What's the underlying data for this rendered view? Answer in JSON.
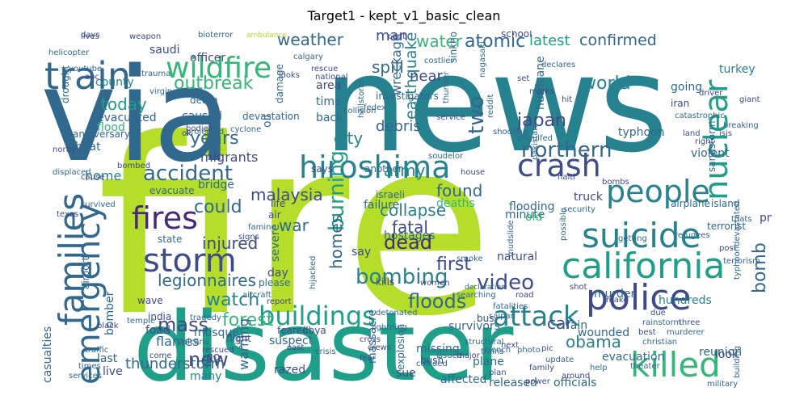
{
  "title": "Target1 - kept_v1_basic_clean",
  "palette": [
    "#440154",
    "#482878",
    "#3e4a89",
    "#31688e",
    "#26828e",
    "#1f9e89",
    "#35b779",
    "#6ece58",
    "#b5de2b",
    "#fde725"
  ],
  "words": [
    {
      "text": "fire",
      "color": "#b5de2b"
    },
    {
      "text": "news",
      "color": "#26828e"
    },
    {
      "text": "via",
      "color": "#31688e"
    },
    {
      "text": "disaster",
      "color": "#1f9e89"
    },
    {
      "text": "train",
      "color": "#31688e"
    },
    {
      "text": "wildfire",
      "color": "#35b779"
    },
    {
      "text": "families",
      "color": "#31688e"
    },
    {
      "text": "emergency",
      "color": "#31688e"
    },
    {
      "text": "hiroshima",
      "color": "#26828e"
    },
    {
      "text": "crash",
      "color": "#3e4a89"
    },
    {
      "text": "people",
      "color": "#26828e"
    },
    {
      "text": "suicide",
      "color": "#26828e"
    },
    {
      "text": "california",
      "color": "#1f9e89"
    },
    {
      "text": "police",
      "color": "#3e4a89"
    },
    {
      "text": "killed",
      "color": "#35b779"
    },
    {
      "text": "fires",
      "color": "#482878"
    },
    {
      "text": "storm",
      "color": "#3e4a89"
    },
    {
      "text": "nuclear",
      "color": "#1f9e89"
    },
    {
      "text": "accident",
      "color": "#31688e"
    },
    {
      "text": "bombing",
      "color": "#26828e"
    },
    {
      "text": "buildings",
      "color": "#1f9e89"
    },
    {
      "text": "attack",
      "color": "#26828e"
    },
    {
      "text": "video",
      "color": "#3e4a89"
    },
    {
      "text": "dead",
      "color": "#482878"
    },
    {
      "text": "weather",
      "color": "#31688e"
    },
    {
      "text": "man",
      "color": "#3e4a89"
    },
    {
      "text": "water",
      "color": "#35b779"
    },
    {
      "text": "atomic",
      "color": "#31688e"
    },
    {
      "text": "latest",
      "color": "#1f9e89"
    },
    {
      "text": "confirmed",
      "color": "#31688e"
    },
    {
      "text": "outbreak",
      "color": "#35b779"
    },
    {
      "text": "today",
      "color": "#1f9e89"
    },
    {
      "text": "years",
      "color": "#31688e"
    },
    {
      "text": "home",
      "color": "#26828e"
    },
    {
      "text": "northern",
      "color": "#31688e"
    },
    {
      "text": "japan",
      "color": "#3e4a89"
    },
    {
      "text": "world",
      "color": "#26828e"
    },
    {
      "text": "two",
      "color": "#31688e"
    },
    {
      "text": "spill",
      "color": "#31688e"
    },
    {
      "text": "earthquake",
      "color": "#26828e"
    },
    {
      "text": "debris",
      "color": "#31688e"
    },
    {
      "text": "collapse",
      "color": "#26828e"
    },
    {
      "text": "fatal",
      "color": "#3e4a89"
    },
    {
      "text": "found",
      "color": "#31688e"
    },
    {
      "text": "army",
      "color": "#26828e"
    },
    {
      "text": "malaysia",
      "color": "#3e4a89"
    },
    {
      "text": "war",
      "color": "#31688e"
    },
    {
      "text": "injured",
      "color": "#3e4a89"
    },
    {
      "text": "could",
      "color": "#31688e"
    },
    {
      "text": "legionnaires",
      "color": "#31688e"
    },
    {
      "text": "watch",
      "color": "#26828e"
    },
    {
      "text": "mass",
      "color": "#3e4a89"
    },
    {
      "text": "forest",
      "color": "#35b779"
    },
    {
      "text": "floods",
      "color": "#31688e"
    },
    {
      "text": "first",
      "color": "#3e4a89"
    },
    {
      "text": "burning",
      "color": "#1f9e89"
    },
    {
      "text": "homes",
      "color": "#31688e"
    },
    {
      "text": "bomb",
      "color": "#31688e"
    },
    {
      "text": "car",
      "color": "#3e4a89"
    },
    {
      "text": "obama",
      "color": "#26828e"
    },
    {
      "text": "wounded",
      "color": "#31688e"
    },
    {
      "text": "new",
      "color": "#3e4a89"
    },
    {
      "text": "thunderstorm",
      "color": "#31688e"
    },
    {
      "text": "released",
      "color": "#31688e"
    },
    {
      "text": "officials",
      "color": "#31688e"
    },
    {
      "text": "evacuation",
      "color": "#31688e"
    },
    {
      "text": "reunion",
      "color": "#31688e"
    },
    {
      "text": "mosque",
      "color": "#31688e"
    },
    {
      "text": "warning",
      "color": "#31688e"
    },
    {
      "text": "flames",
      "color": "#31688e"
    },
    {
      "text": "bomber",
      "color": "#31688e"
    },
    {
      "text": "affected",
      "color": "#31688e"
    },
    {
      "text": "missing",
      "color": "#31688e"
    },
    {
      "text": "plane",
      "color": "#31688e"
    },
    {
      "text": "murder",
      "color": "#31688e"
    },
    {
      "text": "hundreds",
      "color": "#26828e"
    },
    {
      "text": "rain",
      "color": "#31688e"
    },
    {
      "text": "survivors",
      "color": "#31688e"
    },
    {
      "text": "fedex",
      "color": "#31688e"
    },
    {
      "text": "many",
      "color": "#26828e"
    },
    {
      "text": "casualties",
      "color": "#31688e"
    },
    {
      "text": "county",
      "color": "#26828e"
    },
    {
      "text": "evacuated",
      "color": "#31688e"
    },
    {
      "text": "caused",
      "color": "#31688e"
    },
    {
      "text": "death",
      "color": "#31688e"
    },
    {
      "text": "flood",
      "color": "#35b779"
    },
    {
      "text": "heat",
      "color": "#31688e"
    },
    {
      "text": "migrants",
      "color": "#3e4a89"
    },
    {
      "text": "evacuate",
      "color": "#31688e"
    },
    {
      "text": "bridge",
      "color": "#31688e"
    },
    {
      "text": "city",
      "color": "#26828e"
    },
    {
      "text": "investigators",
      "color": "#31688e"
    },
    {
      "text": "wreckage",
      "color": "#31688e"
    },
    {
      "text": "near",
      "color": "#3e4a89"
    },
    {
      "text": "back",
      "color": "#31688e"
    },
    {
      "text": "time",
      "color": "#31688e"
    },
    {
      "text": "area",
      "color": "#3e4a89"
    },
    {
      "text": "typhoon",
      "color": "#31688e"
    },
    {
      "text": "violent",
      "color": "#31688e"
    },
    {
      "text": "flooding",
      "color": "#31688e"
    },
    {
      "text": "truck",
      "color": "#3e4a89"
    },
    {
      "text": "minute",
      "color": "#31688e"
    },
    {
      "text": "deaths",
      "color": "#35b779"
    },
    {
      "text": "hostages",
      "color": "#31688e"
    },
    {
      "text": "severe",
      "color": "#31688e"
    },
    {
      "text": "say",
      "color": "#3e4a89"
    },
    {
      "text": "day",
      "color": "#3e4a89"
    },
    {
      "text": "please",
      "color": "#31688e"
    },
    {
      "text": "airplane",
      "color": "#31688e"
    },
    {
      "text": "island",
      "color": "#31688e"
    },
    {
      "text": "terrorist",
      "color": "#31688e"
    },
    {
      "text": "natural",
      "color": "#3e4a89"
    },
    {
      "text": "iran",
      "color": "#3e4a89"
    },
    {
      "text": "going",
      "color": "#31688e"
    },
    {
      "text": "turkey",
      "color": "#26828e"
    },
    {
      "text": "school",
      "color": "#3e4a89"
    },
    {
      "text": "saudi",
      "color": "#3e4a89"
    },
    {
      "text": "officer",
      "color": "#3e4a89"
    },
    {
      "text": "anniversary",
      "color": "#31688e"
    },
    {
      "text": "drought",
      "color": "#31688e"
    },
    {
      "text": "india",
      "color": "#3e4a89"
    },
    {
      "text": "live",
      "color": "#3e4a89"
    },
    {
      "text": "last",
      "color": "#31688e"
    },
    {
      "text": "food",
      "color": "#3e4a89"
    },
    {
      "text": "state",
      "color": "#31688e"
    },
    {
      "text": "airport",
      "color": "#31688e"
    },
    {
      "text": "suspect",
      "color": "#31688e"
    },
    {
      "text": "razed",
      "color": "#3e4a89"
    },
    {
      "text": "sue",
      "color": "#3e4a89"
    },
    {
      "text": "massacre",
      "color": "#31688e"
    },
    {
      "text": "explosion",
      "color": "#31688e"
    },
    {
      "text": "since",
      "color": "#26828e"
    },
    {
      "text": "go",
      "color": "#3e4a89"
    },
    {
      "text": "sandstorm",
      "color": "#31688e"
    },
    {
      "text": "hurricane",
      "color": "#31688e"
    },
    {
      "text": "failure",
      "color": "#31688e"
    },
    {
      "text": "oil",
      "color": "#31688e"
    },
    {
      "text": "devastation",
      "color": "#31688e"
    },
    {
      "text": "damage",
      "color": "#31688e"
    },
    {
      "text": "look",
      "color": "#3e4a89"
    },
    {
      "text": "pm",
      "color": "#3e4a89"
    },
    {
      "text": "old",
      "color": "#35b779"
    },
    {
      "text": "bus",
      "color": "#3e4a89"
    },
    {
      "text": "lives",
      "color": "#3e4a89"
    },
    {
      "text": "weapon",
      "color": "#3e4a89"
    },
    {
      "text": "helicopter",
      "color": "#31688e"
    },
    {
      "text": "youtube",
      "color": "#31688e"
    },
    {
      "text": "trauma",
      "color": "#31688e"
    },
    {
      "text": "virgin",
      "color": "#31688e"
    },
    {
      "text": "calgary",
      "color": "#31688e"
    },
    {
      "text": "cyclone",
      "color": "#31688e"
    },
    {
      "text": "bioterror",
      "color": "#31688e"
    },
    {
      "text": "ambulance",
      "color": "#b5de2b"
    },
    {
      "text": "mudslide",
      "color": "#31688e"
    },
    {
      "text": "sinkhole",
      "color": "#31688e"
    },
    {
      "text": "structural",
      "color": "#31688e"
    },
    {
      "text": "bush",
      "color": "#3e4a89"
    },
    {
      "text": "crisis",
      "color": "#31688e"
    },
    {
      "text": "libya",
      "color": "#3e4a89"
    },
    {
      "text": "trains",
      "color": "#31688e"
    },
    {
      "text": "flight",
      "color": "#3e4a89"
    },
    {
      "text": "wave",
      "color": "#3e4a89"
    },
    {
      "text": "temple",
      "color": "#31688e"
    },
    {
      "text": "traffic",
      "color": "#31688e"
    },
    {
      "text": "times",
      "color": "#31688e"
    },
    {
      "text": "services",
      "color": "#31688e"
    },
    {
      "text": "rescued",
      "color": "#3e4a89"
    },
    {
      "text": "volcano",
      "color": "#31688e"
    },
    {
      "text": "lightning",
      "color": "#31688e"
    },
    {
      "text": "collided",
      "color": "#31688e"
    },
    {
      "text": "issued",
      "color": "#31688e"
    },
    {
      "text": "photo",
      "color": "#31688e"
    },
    {
      "text": "update",
      "color": "#31688e"
    },
    {
      "text": "help",
      "color": "#31688e"
    },
    {
      "text": "christian",
      "color": "#31688e"
    },
    {
      "text": "family",
      "color": "#3e4a89"
    },
    {
      "text": "around",
      "color": "#3e4a89"
    },
    {
      "text": "power",
      "color": "#3e4a89"
    },
    {
      "text": "military",
      "color": "#31688e"
    },
    {
      "text": "building",
      "color": "#31688e"
    },
    {
      "text": "refugees",
      "color": "#31688e"
    },
    {
      "text": "getting",
      "color": "#31688e"
    },
    {
      "text": "thats",
      "color": "#31688e"
    },
    {
      "text": "post",
      "color": "#3e4a89"
    },
    {
      "text": "saipan",
      "color": "#31688e"
    },
    {
      "text": "fatalities",
      "color": "#31688e"
    },
    {
      "text": "shot",
      "color": "#3e4a89"
    },
    {
      "text": "make",
      "color": "#3e4a89"
    },
    {
      "text": "due",
      "color": "#3e4a89"
    },
    {
      "text": "three",
      "color": "#3e4a89"
    },
    {
      "text": "rainstorm",
      "color": "#31688e"
    },
    {
      "text": "murderer",
      "color": "#31688e"
    },
    {
      "text": "best",
      "color": "#3e4a89"
    },
    {
      "text": "plan",
      "color": "#3e4a89"
    },
    {
      "text": "next",
      "color": "#3e4a89"
    },
    {
      "text": "pic",
      "color": "#3e4a89"
    },
    {
      "text": "road",
      "color": "#3e4a89"
    },
    {
      "text": "declaration",
      "color": "#31688e"
    },
    {
      "text": "report",
      "color": "#3e4a89"
    },
    {
      "text": "aircraft",
      "color": "#31688e"
    },
    {
      "text": "women",
      "color": "#3e4a89"
    },
    {
      "text": "kills",
      "color": "#3e4a89"
    },
    {
      "text": "detonated",
      "color": "#31688e"
    },
    {
      "text": "searching",
      "color": "#31688e"
    },
    {
      "text": "hijacked",
      "color": "#31688e"
    },
    {
      "text": "feared",
      "color": "#3e4a89"
    },
    {
      "text": "east",
      "color": "#3e4a89"
    },
    {
      "text": "crews",
      "color": "#3e4a89"
    },
    {
      "text": "tragedy",
      "color": "#31688e"
    },
    {
      "text": "says",
      "color": "#3e4a89"
    },
    {
      "text": "another",
      "color": "#31688e"
    },
    {
      "text": "israeli",
      "color": "#31688e"
    },
    {
      "text": "house",
      "color": "#3e4a89"
    },
    {
      "text": "bombed",
      "color": "#3e4a89"
    },
    {
      "text": "life",
      "color": "#3e4a89"
    },
    {
      "text": "air",
      "color": "#3e4a89"
    },
    {
      "text": "signs",
      "color": "#3e4a89"
    },
    {
      "text": "famine",
      "color": "#31688e"
    },
    {
      "text": "displaced",
      "color": "#31688e"
    },
    {
      "text": "north",
      "color": "#3e4a89"
    },
    {
      "text": "projected",
      "color": "#31688e"
    },
    {
      "text": "looks",
      "color": "#3e4a89"
    },
    {
      "text": "cant",
      "color": "#3e4a89"
    },
    {
      "text": "costlier",
      "color": "#31688e"
    },
    {
      "text": "rescue",
      "color": "#3e4a89"
    },
    {
      "text": "national",
      "color": "#3e4a89"
    },
    {
      "text": "collision",
      "color": "#31688e"
    },
    {
      "text": "marks",
      "color": "#3e4a89"
    },
    {
      "text": "hit",
      "color": "#3e4a89"
    },
    {
      "text": "set",
      "color": "#3e4a89"
    },
    {
      "text": "giant",
      "color": "#3e4a89"
    },
    {
      "text": "catastrophic",
      "color": "#31688e"
    },
    {
      "text": "breaking",
      "color": "#31688e"
    },
    {
      "text": "isis",
      "color": "#3e4a89"
    },
    {
      "text": "right",
      "color": "#3e4a89"
    },
    {
      "text": "land",
      "color": "#3e4a89"
    },
    {
      "text": "shooting",
      "color": "#31688e"
    },
    {
      "text": "engulfed",
      "color": "#31688e"
    },
    {
      "text": "service",
      "color": "#3e4a89"
    },
    {
      "text": "thunder",
      "color": "#31688e"
    },
    {
      "text": "declares",
      "color": "#31688e"
    },
    {
      "text": "bodies",
      "color": "#3e4a89"
    },
    {
      "text": "ok",
      "color": "#3e4a89"
    },
    {
      "text": "cause",
      "color": "#3e4a89"
    },
    {
      "text": "survived",
      "color": "#31688e"
    },
    {
      "text": "days",
      "color": "#3e4a89"
    },
    {
      "text": "abc",
      "color": "#3e4a89"
    },
    {
      "text": "security",
      "color": "#31688e"
    },
    {
      "text": "possible",
      "color": "#31688e"
    },
    {
      "text": "terrorism",
      "color": "#31688e"
    },
    {
      "text": "trench",
      "color": "#31688e"
    },
    {
      "text": "soudelor",
      "color": "#31688e"
    },
    {
      "text": "pakistan",
      "color": "#31688e"
    },
    {
      "text": "haiti",
      "color": "#3e4a89"
    },
    {
      "text": "bombs",
      "color": "#3e4a89"
    },
    {
      "text": "smoke",
      "color": "#31688e"
    },
    {
      "text": "cross",
      "color": "#3e4a89"
    },
    {
      "text": "major",
      "color": "#3e4a89"
    },
    {
      "text": "come",
      "color": "#3e4a89"
    },
    {
      "text": "texas",
      "color": "#3e4a89"
    },
    {
      "text": "fear",
      "color": "#3e4a89"
    },
    {
      "text": "black",
      "color": "#3e4a89"
    },
    {
      "text": "driver",
      "color": "#3e4a89"
    },
    {
      "text": "nagasaki",
      "color": "#31688e"
    },
    {
      "text": "theater",
      "color": "#31688e"
    },
    {
      "text": "hailstorm",
      "color": "#31688e"
    },
    {
      "text": "reddit",
      "color": "#31688e"
    },
    {
      "text": "typhoondevastated",
      "color": "#31688e"
    }
  ]
}
